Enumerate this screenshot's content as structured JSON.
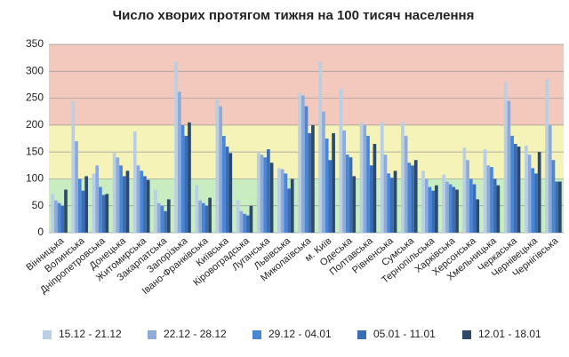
{
  "chart_data": {
    "type": "bar",
    "title": "Число хворих протягом тижня на 100 тисяч населення",
    "categories": [
      "Вінницька",
      "Волинська",
      "Дніпропетровська",
      "Донецька",
      "Житомирська",
      "Закарпатська",
      "Запорізька",
      "Івано-Франківська",
      "Київська",
      "Кіровоградська",
      "Луганська",
      "Львівська",
      "Миколаївська",
      "м. Київ",
      "Одеська",
      "Полтавська",
      "Рівненська",
      "Сумська",
      "Тернопільська",
      "Харківська",
      "Херсонська",
      "Хмельницька",
      "Черкаська",
      "Чернівецька",
      "Чернігівська"
    ],
    "series": [
      {
        "name": "15.12 - 21.12",
        "color": "#b9cfe4",
        "values": [
          72,
          245,
          110,
          148,
          188,
          80,
          318,
          88,
          248,
          60,
          150,
          120,
          260,
          318,
          268,
          205,
          205,
          205,
          115,
          108,
          158,
          155,
          280,
          162,
          285
        ]
      },
      {
        "name": "22.12 - 28.12",
        "color": "#8eaadb",
        "values": [
          60,
          170,
          125,
          140,
          125,
          55,
          262,
          60,
          235,
          40,
          145,
          118,
          255,
          225,
          190,
          200,
          145,
          180,
          100,
          95,
          135,
          125,
          245,
          145,
          200
        ]
      },
      {
        "name": "29.12 - 04.01",
        "color": "#4a86d6",
        "values": [
          55,
          100,
          85,
          125,
          115,
          50,
          200,
          55,
          180,
          35,
          140,
          110,
          235,
          175,
          145,
          180,
          110,
          130,
          85,
          90,
          100,
          122,
          180,
          120,
          135
        ]
      },
      {
        "name": "05.01 - 11.01",
        "color": "#3a6db4",
        "values": [
          50,
          78,
          70,
          105,
          105,
          40,
          180,
          50,
          160,
          32,
          155,
          82,
          185,
          135,
          140,
          125,
          102,
          125,
          78,
          85,
          90,
          100,
          165,
          110,
          95
        ]
      },
      {
        "name": "12.01 - 18.01",
        "color": "#2e4a6b",
        "values": [
          80,
          105,
          72,
          115,
          98,
          62,
          205,
          65,
          148,
          50,
          130,
          100,
          200,
          185,
          105,
          165,
          115,
          135,
          88,
          80,
          62,
          88,
          160,
          150,
          95
        ]
      }
    ],
    "ylim": [
      0,
      350
    ],
    "yticks": [
      0,
      50,
      100,
      150,
      200,
      250,
      300,
      350
    ],
    "grid": true,
    "background_bands": [
      {
        "from": 0,
        "to": 100,
        "color": "#c9ecc0"
      },
      {
        "from": 100,
        "to": 200,
        "color": "#f5f3b8"
      },
      {
        "from": 200,
        "to": 350,
        "color": "#f2c9bc"
      }
    ]
  }
}
